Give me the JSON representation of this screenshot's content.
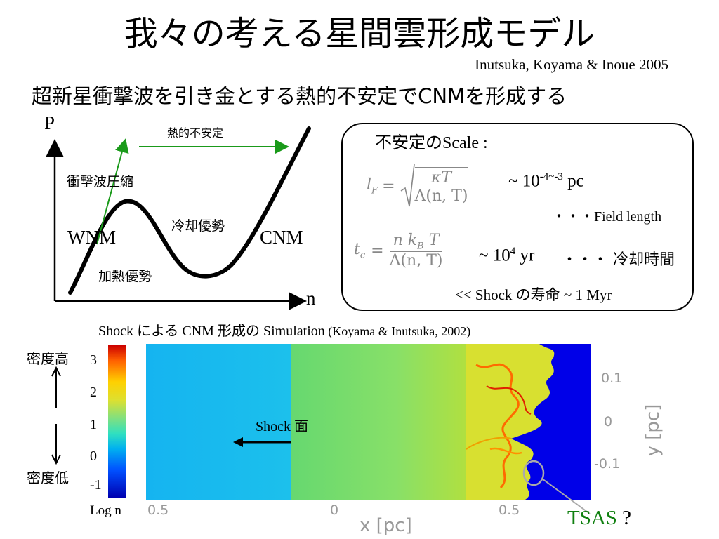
{
  "title": "我々の考える星間雲形成モデル",
  "reference": "Inutsuka, Koyama & Inoue 2005",
  "subtitle": "超新星衝撃波を引き金とする熱的不安定でCNMを形成する",
  "diagram": {
    "p_axis": "P",
    "n_axis": "n",
    "thermal_instability": "熱的不安定",
    "shock_compression": "衝撃波圧縮",
    "cooling_dominant": "冷却優勢",
    "heating_dominant": "加熱優勢",
    "wnm": "WNM",
    "cnm": "CNM"
  },
  "scale_box": {
    "heading_jp": "不安定の",
    "heading_en": "Scale :",
    "lf_lhs": "l",
    "lf_sub": "F",
    "lf_num": "κT",
    "lf_den": "Λ(n, T)",
    "lf_value_pre": "~ 10",
    "lf_value_exp": "-4~-3",
    "lf_value_unit": " pc",
    "field_length": "・・・Field length",
    "tc_lhs": "t",
    "tc_sub": "c",
    "tc_num": "n k",
    "tc_num_sub": "B",
    "tc_num_post": " T",
    "tc_den": "Λ(n, T)",
    "tc_value_pre": "~ 10",
    "tc_value_exp": "4",
    "tc_value_unit": " yr",
    "cooling_time": "・・・ 冷却時間",
    "shock_life": "<< Shock の寿命 ~ 1 Myr"
  },
  "simulation": {
    "caption_main": "Shock による CNM 形成の Simulation",
    "caption_ref": " (Koyama & Inutsuka, 2002)",
    "density_high": "密度高",
    "density_low": "密度低",
    "log_n": "Log n",
    "cbar_ticks": [
      "3",
      "2",
      "1",
      "0",
      "-1"
    ],
    "x_ticks": [
      "0.5",
      "0",
      "0.5"
    ],
    "y_ticks": [
      "0.1",
      "0",
      "-0.1"
    ],
    "x_label": "x [pc]",
    "y_label": "y [pc]",
    "shock_front": "Shock 面",
    "tsas": "TSAS",
    "tsas_q": " ?"
  },
  "colors": {
    "arrow_green": "#1a9a1a",
    "tsas_green": "#108010",
    "sim_blue": "#0000e8",
    "sim_cyan": "#18b4f0",
    "sim_green": "#78e078"
  }
}
